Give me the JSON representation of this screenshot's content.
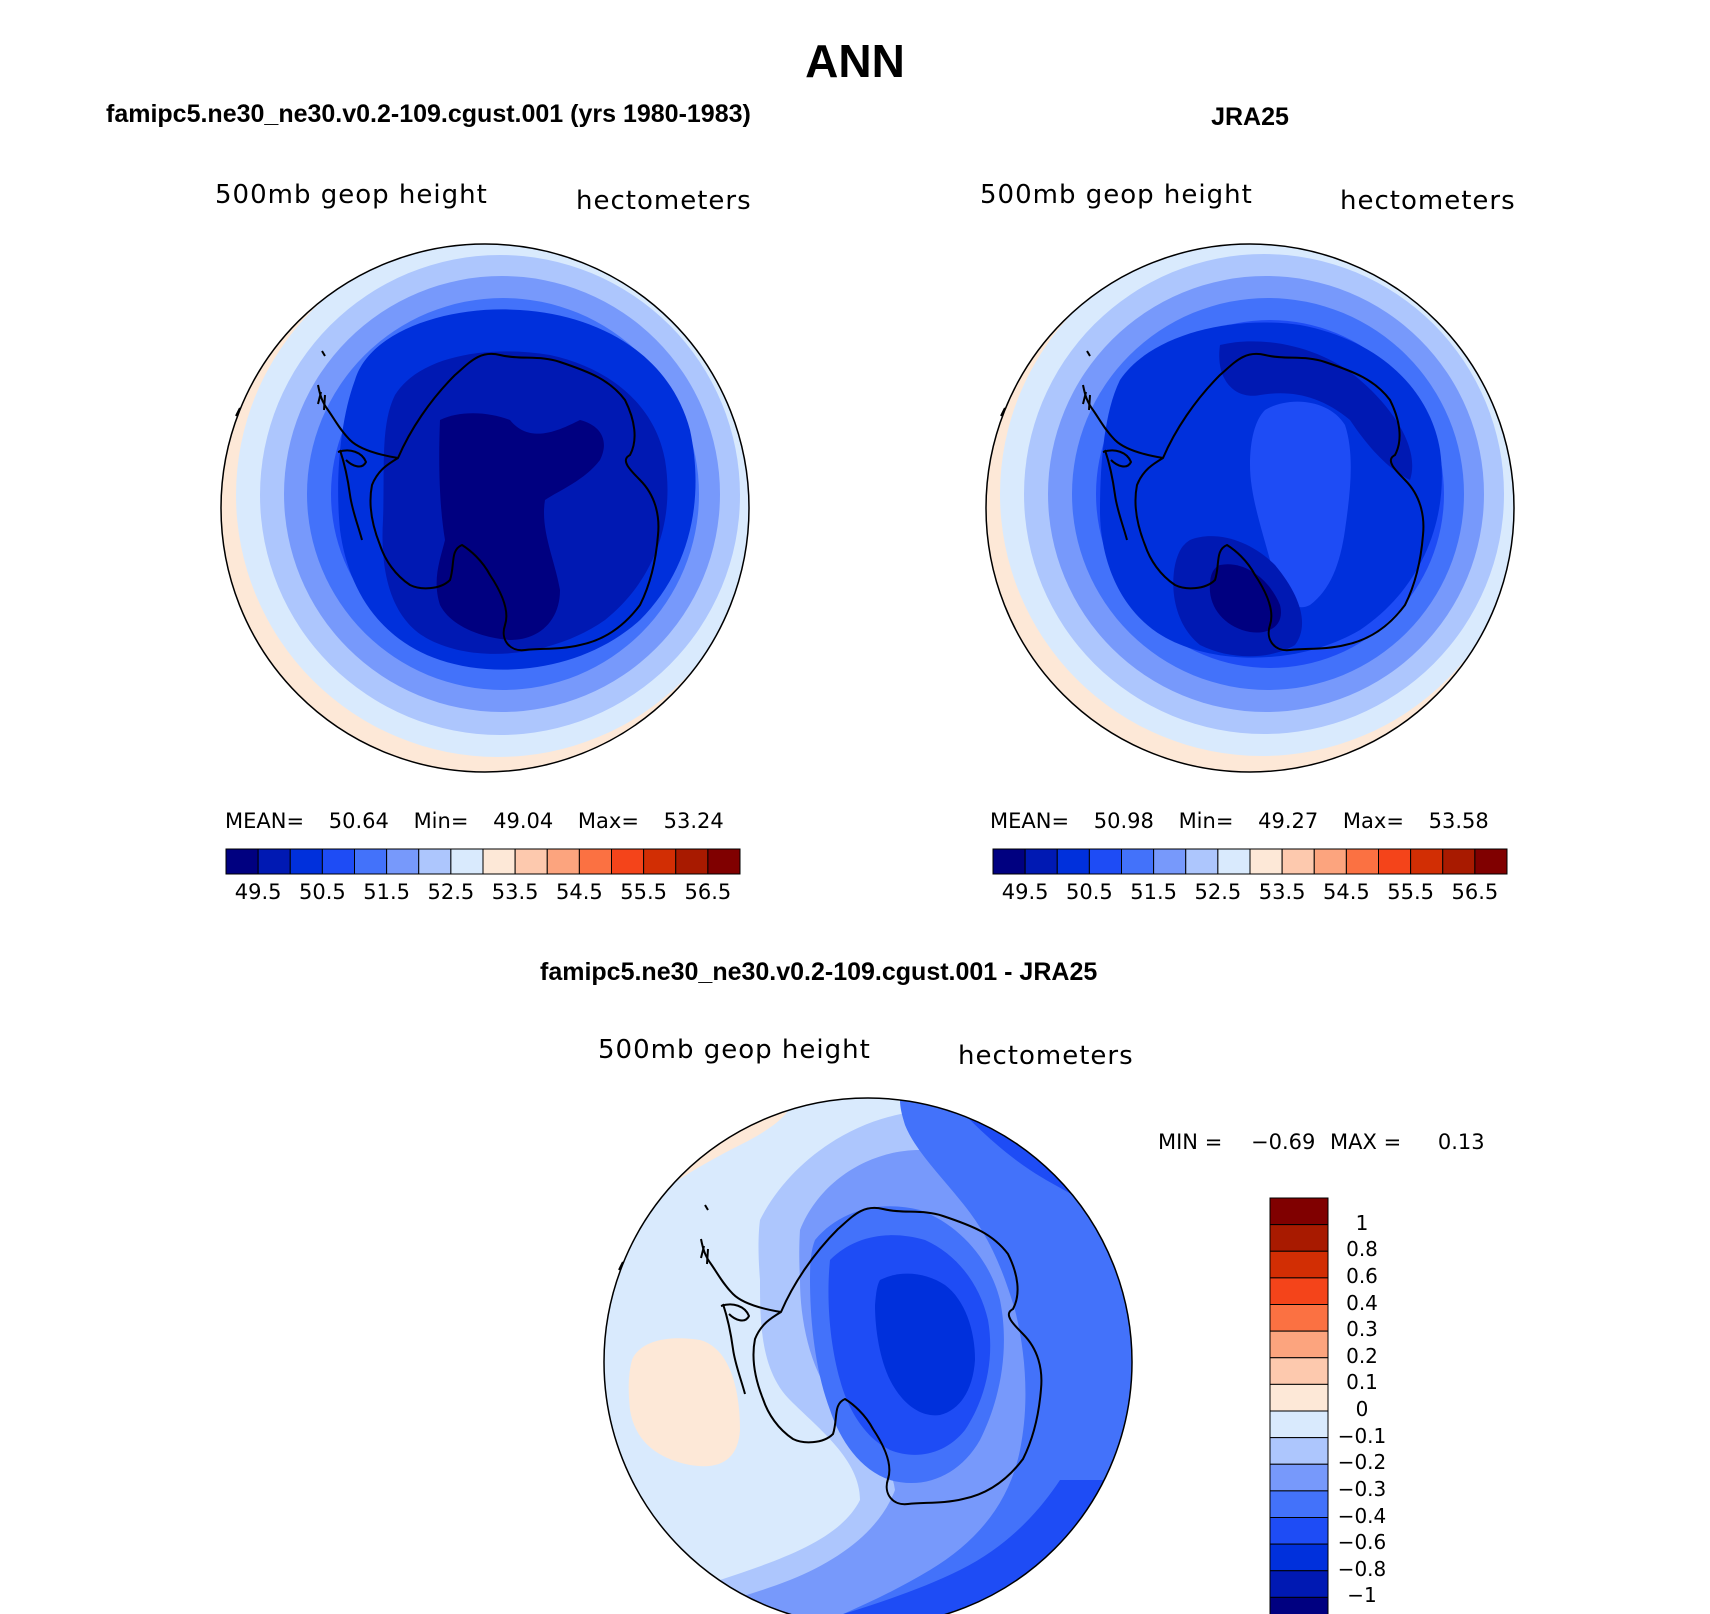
{
  "main_title": "ANN",
  "colors": {
    "abs": [
      "#000080",
      "#0019b3",
      "#0030dc",
      "#1e4cf5",
      "#4372fa",
      "#7799fb",
      "#adc6fd",
      "#d9eafd",
      "#fde8d7",
      "#fdc9ae",
      "#fca47e",
      "#fb7142",
      "#f4441a",
      "#d22e04",
      "#a81a00",
      "#800000"
    ],
    "diff": [
      "#000080",
      "#0019b3",
      "#0030dc",
      "#1e4cf5",
      "#4372fa",
      "#7799fb",
      "#adc6fd",
      "#d9eafd",
      "#fde8d7",
      "#fdc9ae",
      "#fca47e",
      "#fb7142",
      "#f4441a",
      "#d22e04",
      "#a81a00",
      "#800000"
    ],
    "land_outline": "#000000"
  },
  "panels": [
    {
      "title": "famipc5.ne30_ne30.v0.2-109.cgust.001 (yrs 1980-1983)",
      "variable": "500mb geop height",
      "units": "hectometers",
      "stats": {
        "mean_label": "MEAN=",
        "mean": "50.64",
        "min_label": "Min=",
        "min": "49.04",
        "max_label": "Max=",
        "max": "53.24"
      },
      "colorbar_labels": [
        "49.5",
        "50.5",
        "51.5",
        "52.5",
        "53.5",
        "54.5",
        "55.5",
        "56.5"
      ]
    },
    {
      "title": "JRA25",
      "variable": "500mb geop height",
      "units": "hectometers",
      "stats": {
        "mean_label": "MEAN=",
        "mean": "50.98",
        "min_label": "Min=",
        "min": "49.27",
        "max_label": "Max=",
        "max": "53.58"
      },
      "colorbar_labels": [
        "49.5",
        "50.5",
        "51.5",
        "52.5",
        "53.5",
        "54.5",
        "55.5",
        "56.5"
      ]
    }
  ],
  "diff_panel": {
    "title": "famipc5.ne30_ne30.v0.2-109.cgust.001 - JRA25",
    "variable": "500mb geop height",
    "units": "hectometers",
    "stats": {
      "min_label": "MIN =",
      "min": "−0.69",
      "max_label": "MAX =",
      "max": "0.13"
    },
    "colorbar_labels": [
      "1",
      "0.8",
      "0.6",
      "0.4",
      "0.3",
      "0.2",
      "0.1",
      "0",
      "−0.1",
      "−0.2",
      "−0.3",
      "−0.4",
      "−0.6",
      "−0.8",
      "−1"
    ]
  }
}
